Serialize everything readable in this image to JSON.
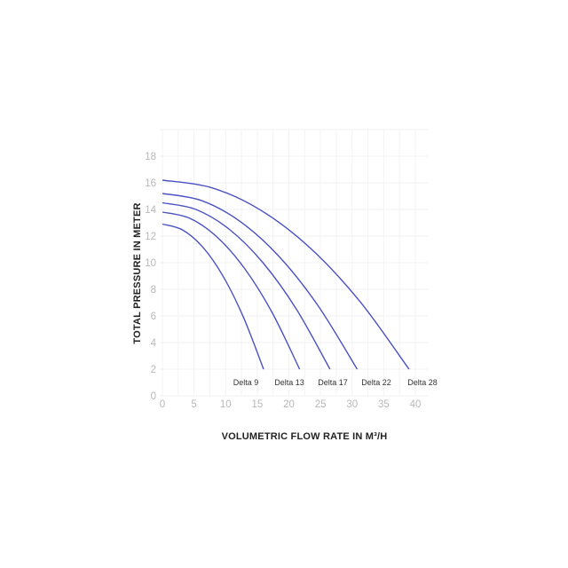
{
  "chart_data": {
    "type": "line",
    "title": "",
    "xlabel": "VOLUMETRIC FLOW RATE IN M³/H",
    "ylabel": "TOTAL PRESSURE IN METER",
    "xlim": [
      0,
      42
    ],
    "ylim": [
      0,
      20
    ],
    "x_ticks": [
      "0",
      "5",
      "10",
      "15",
      "20",
      "25",
      "30",
      "35",
      "40"
    ],
    "y_ticks": [
      "0",
      "2",
      "4",
      "6",
      "8",
      "10",
      "12",
      "14",
      "16",
      "18"
    ],
    "grid": true,
    "line_color": "#4b52c2",
    "series": [
      {
        "name": "Delta 9",
        "x": [
          0,
          3.2,
          6.4,
          9.6,
          12.8,
          16
        ],
        "y": [
          12.9,
          12.46,
          11.16,
          8.98,
          5.92,
          2
        ]
      },
      {
        "name": "Delta 13",
        "x": [
          0,
          4.34,
          8.68,
          13.02,
          17.36,
          21.7
        ],
        "y": [
          13.8,
          13.33,
          11.91,
          9.55,
          6.25,
          2
        ]
      },
      {
        "name": "Delta 17",
        "x": [
          0,
          5.3,
          10.6,
          15.9,
          21.2,
          26.5
        ],
        "y": [
          14.5,
          14.0,
          12.5,
          10.0,
          6.5,
          2
        ]
      },
      {
        "name": "Delta 22",
        "x": [
          0,
          6.16,
          12.32,
          18.48,
          24.64,
          30.8
        ],
        "y": [
          15.2,
          14.67,
          13.09,
          10.45,
          6.75,
          2
        ]
      },
      {
        "name": "Delta 28",
        "x": [
          0,
          7.8,
          15.6,
          23.4,
          31.2,
          39
        ],
        "y": [
          16.2,
          15.63,
          13.93,
          11.09,
          7.11,
          2
        ]
      }
    ]
  }
}
